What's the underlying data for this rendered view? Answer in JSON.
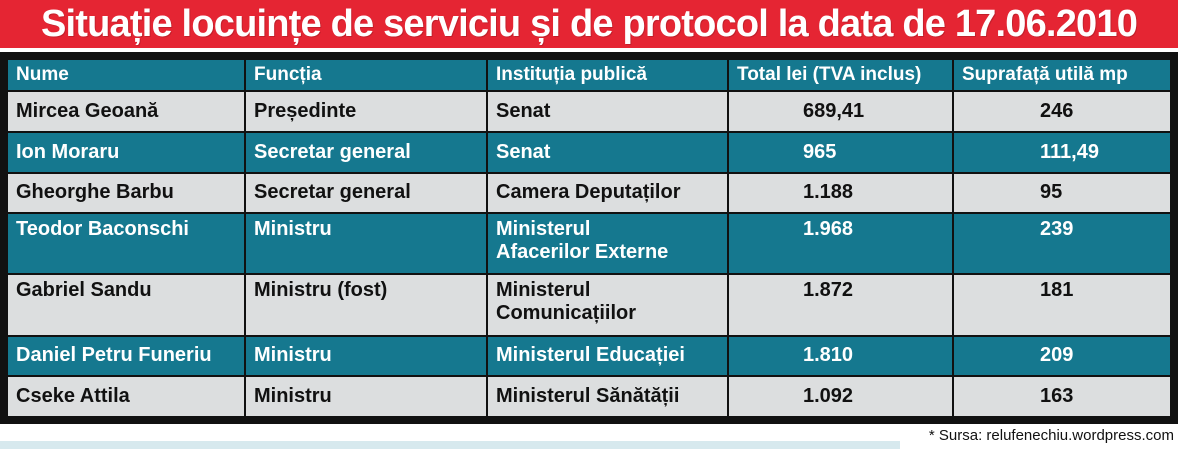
{
  "title": "Situație locuințe de serviciu și de protocol la data de 17.06.2010",
  "table": {
    "headers": [
      "Nume",
      "Funcția",
      "Instituția publică",
      "Total lei (TVA inclus)",
      "Suprafață utilă mp"
    ],
    "rows": [
      {
        "name": "Mircea Geoană",
        "role": "Președinte",
        "inst1": "Senat",
        "inst2": "",
        "total": "689,41",
        "area": "246"
      },
      {
        "name": "Ion Moraru",
        "role": "Secretar general",
        "inst1": "Senat",
        "inst2": "",
        "total": "965",
        "area": "111,49"
      },
      {
        "name": "Gheorghe Barbu",
        "role": "Secretar general",
        "inst1": "Camera Deputaților",
        "inst2": "",
        "total": "1.188",
        "area": "95"
      },
      {
        "name": "Teodor Baconschi",
        "role": "Ministru",
        "inst1": "Ministerul",
        "inst2": "Afacerilor Externe",
        "total": "1.968",
        "area": "239"
      },
      {
        "name": "Gabriel Sandu",
        "role": "Ministru (fost)",
        "inst1": "Ministerul",
        "inst2": "Comunicațiilor",
        "total": "1.872",
        "area": "181"
      },
      {
        "name": "Daniel Petru Funeriu",
        "role": "Ministru",
        "inst1": "Ministerul Educației",
        "inst2": "",
        "total": "1.810",
        "area": "209"
      },
      {
        "name": "Cseke Attila",
        "role": "Ministru",
        "inst1": "Ministerul Sănătății",
        "inst2": "",
        "total": "1.092",
        "area": "163"
      }
    ]
  },
  "source": "* Sursa: relufenechiu.wordpress.com",
  "colors": {
    "title_bg": "#e52533",
    "header_bg": "#15788f",
    "row_light": "#dcdedf",
    "border": "#111111"
  }
}
